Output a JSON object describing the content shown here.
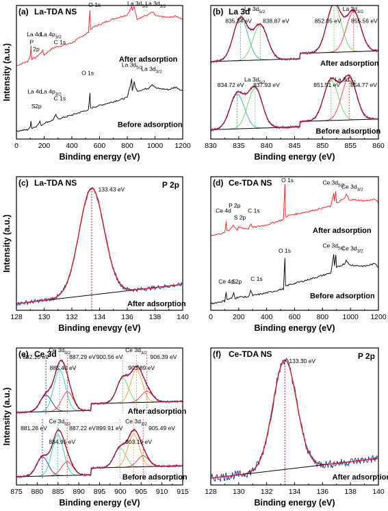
{
  "chart_data": [
    {
      "id": "a",
      "type": "line",
      "panel_label": "(a)",
      "sample": "La-TDA NS",
      "xlabel": "Binding energy (eV)",
      "ylabel": "Intensity (a.u.)",
      "xlim": [
        0,
        1200
      ],
      "xticks": [
        0,
        200,
        400,
        600,
        800,
        1000,
        1200
      ],
      "series": [
        {
          "name": "After adsorption",
          "color": "#ff2a2a",
          "x": [
            0,
            80,
            100,
            105,
            110,
            140,
            190,
            200,
            260,
            290,
            400,
            520,
            531,
            535,
            560,
            700,
            800,
            832,
            836,
            850,
            855,
            870,
            950,
            980,
            1010,
            1100,
            1150,
            1200
          ],
          "y": [
            0.55,
            0.58,
            0.62,
            0.7,
            0.6,
            0.61,
            0.66,
            0.63,
            0.68,
            0.69,
            0.72,
            0.8,
            0.97,
            0.82,
            0.84,
            0.9,
            0.93,
            0.99,
            0.96,
            0.99,
            0.97,
            0.9,
            0.93,
            0.95,
            0.92,
            0.91,
            0.92,
            0.9
          ]
        },
        {
          "name": "Before adsorption",
          "color": "#111111",
          "x": [
            0,
            80,
            100,
            105,
            110,
            150,
            170,
            180,
            200,
            260,
            285,
            300,
            400,
            520,
            531,
            535,
            560,
            700,
            800,
            832,
            836,
            850,
            855,
            870,
            950,
            980,
            1010,
            1100,
            1150,
            1200
          ],
          "y": [
            0.06,
            0.07,
            0.09,
            0.14,
            0.08,
            0.1,
            0.13,
            0.1,
            0.12,
            0.14,
            0.18,
            0.15,
            0.18,
            0.22,
            0.34,
            0.23,
            0.24,
            0.28,
            0.31,
            0.45,
            0.36,
            0.43,
            0.4,
            0.36,
            0.38,
            0.41,
            0.38,
            0.37,
            0.39,
            0.36
          ]
        }
      ],
      "annotations": [
        {
          "text": "O 1s",
          "x": 520,
          "y": 0.99
        },
        {
          "text": "La 3d",
          "sub": "5/2",
          "x": 800,
          "y": 1.0
        },
        {
          "text": "La 3d",
          "sub": "3/2",
          "x": 930,
          "y": 1.0
        },
        {
          "text": "La 4d",
          "x": 75,
          "y": 0.77
        },
        {
          "text": "P",
          "x": 96,
          "y": 0.71
        },
        {
          "text": "2p",
          "x": 120,
          "y": 0.66
        },
        {
          "text": "La 4p",
          "sub": "3/2",
          "x": 175,
          "y": 0.77
        },
        {
          "text": "C 1s",
          "x": 270,
          "y": 0.71
        },
        {
          "text": "O 1s",
          "x": 470,
          "y": 0.48
        },
        {
          "text": "La 3d",
          "sub": "5/2",
          "x": 760,
          "y": 0.54
        },
        {
          "text": "La 3d",
          "sub": "3/2",
          "x": 900,
          "y": 0.51
        },
        {
          "text": "La 4d",
          "x": 80,
          "y": 0.34
        },
        {
          "text": "S",
          "x": 108,
          "y": 0.23
        },
        {
          "text": "2p",
          "x": 134,
          "y": 0.23
        },
        {
          "text": "La 4p",
          "sub": "3/2",
          "x": 175,
          "y": 0.34
        },
        {
          "text": "C 1s",
          "x": 270,
          "y": 0.29
        }
      ],
      "state_labels": [
        {
          "text": "After adsorption",
          "x": 740,
          "y": 0.58
        },
        {
          "text": "Before adsorption",
          "x": 730,
          "y": 0.09
        }
      ]
    },
    {
      "id": "b",
      "type": "line",
      "panel_label": "(b)",
      "sample": "La 3d",
      "xlabel": "Binding energy (eV)",
      "ylabel": "",
      "xlim": [
        830,
        860
      ],
      "xticks": [
        830,
        835,
        840,
        845,
        850,
        855,
        860
      ],
      "peaks": {
        "after": [
          835.34,
          838.87,
          852.05,
          855.56
        ],
        "before": [
          834.72,
          837.93,
          851.51,
          854.77
        ]
      },
      "annotations": [
        {
          "text": "La 3d",
          "sub": "5/2",
          "x": 836.0,
          "y": 0.96
        },
        {
          "text": "La 3d",
          "sub": "3/2",
          "x": 853.6,
          "y": 0.96
        },
        {
          "text": "835.34 eV",
          "x": 832.6,
          "y": 0.87
        },
        {
          "text": "838.87 eV",
          "x": 839.3,
          "y": 0.87
        },
        {
          "text": "852.05 eV",
          "x": 848.6,
          "y": 0.87
        },
        {
          "text": "855.56 eV",
          "x": 855.1,
          "y": 0.87
        },
        {
          "text": "La 3d",
          "sub": "5/2",
          "x": 836.0,
          "y": 0.43
        },
        {
          "text": "La 3d",
          "sub": "3/2",
          "x": 852.2,
          "y": 0.43
        },
        {
          "text": "834.72 eV",
          "x": 831.2,
          "y": 0.39
        },
        {
          "text": "837.93 eV",
          "x": 837.6,
          "y": 0.39
        },
        {
          "text": "851.51 eV",
          "x": 848.4,
          "y": 0.39
        },
        {
          "text": "854.77 eV",
          "x": 855.0,
          "y": 0.39
        }
      ],
      "state_labels": [
        {
          "text": "After adsorption",
          "x": 849.6,
          "y": 0.55
        },
        {
          "text": "Before adsorption",
          "x": 848.8,
          "y": 0.04
        }
      ]
    },
    {
      "id": "c",
      "type": "line",
      "panel_label": "(c)",
      "sample": "La-TDA NS",
      "element": "P 2p",
      "xlabel": "Binding enevgy (eV)",
      "ylabel": "Intensity (a.u.)",
      "xlim": [
        128,
        140
      ],
      "xticks": [
        128,
        130,
        132,
        134,
        136,
        138,
        140
      ],
      "peaks": [
        133.43
      ],
      "annotations": [
        {
          "text": "133.43 eV",
          "x": 133.9,
          "y": 0.89
        }
      ],
      "state_labels": [
        {
          "text": "After adsorption",
          "x": 136.0,
          "y": 0.03
        }
      ]
    },
    {
      "id": "d",
      "type": "line",
      "panel_label": "(d)",
      "sample": "Ce-TDA NS",
      "xlabel": "Binding energy (eV)",
      "ylabel": "",
      "xlim": [
        0,
        1200
      ],
      "xticks": [
        0,
        200,
        400,
        600,
        800,
        1000,
        1200
      ],
      "series": [
        {
          "name": "After adsorption",
          "color": "#ff2a2a",
          "x": [
            0,
            100,
            110,
            115,
            130,
            150,
            160,
            190,
            200,
            270,
            285,
            300,
            400,
            520,
            531,
            535,
            560,
            700,
            860,
            880,
            885,
            895,
            900,
            960,
            970,
            990,
            1100,
            1180,
            1200
          ],
          "y": [
            0.56,
            0.58,
            0.66,
            0.6,
            0.6,
            0.62,
            0.64,
            0.6,
            0.62,
            0.61,
            0.65,
            0.62,
            0.64,
            0.68,
            0.95,
            0.7,
            0.71,
            0.74,
            0.78,
            0.88,
            0.82,
            0.89,
            0.8,
            0.84,
            0.87,
            0.83,
            0.82,
            0.83,
            0.8
          ]
        },
        {
          "name": "Before adsorption",
          "color": "#111111",
          "x": [
            0,
            100,
            110,
            115,
            150,
            165,
            175,
            200,
            270,
            285,
            300,
            400,
            520,
            531,
            535,
            560,
            700,
            860,
            880,
            885,
            895,
            900,
            960,
            970,
            990,
            1100,
            1180,
            1200
          ],
          "y": [
            0.05,
            0.07,
            0.14,
            0.08,
            0.09,
            0.13,
            0.09,
            0.1,
            0.1,
            0.15,
            0.11,
            0.13,
            0.16,
            0.39,
            0.18,
            0.19,
            0.23,
            0.28,
            0.42,
            0.33,
            0.41,
            0.32,
            0.35,
            0.38,
            0.34,
            0.33,
            0.35,
            0.32
          ]
        }
      ],
      "annotations": [
        {
          "text": "O 1s",
          "x": 505,
          "y": 0.96
        },
        {
          "text": "Ce 3d",
          "sub": "5/2",
          "x": 800,
          "y": 0.94
        },
        {
          "text": "Ce 3d",
          "sub": "3/2",
          "x": 935,
          "y": 0.91
        },
        {
          "text": "Ce 4d",
          "x": 35,
          "y": 0.73
        },
        {
          "text": "P 2p",
          "x": 128,
          "y": 0.77
        },
        {
          "text": "S 2p",
          "x": 165,
          "y": 0.68
        },
        {
          "text": "C 1s",
          "x": 265,
          "y": 0.73
        },
        {
          "text": "O 1s",
          "x": 485,
          "y": 0.43
        },
        {
          "text": "Ce 3d",
          "sub": "5/2",
          "x": 800,
          "y": 0.47
        },
        {
          "text": "Ce 3d",
          "sub": "3/2",
          "x": 935,
          "y": 0.45
        },
        {
          "text": "Ce 4d",
          "x": 55,
          "y": 0.2
        },
        {
          "text": "S",
          "x": 150,
          "y": 0.2
        },
        {
          "text": "2p",
          "x": 175,
          "y": 0.2
        },
        {
          "text": "C 1s",
          "x": 285,
          "y": 0.22
        }
      ],
      "state_labels": [
        {
          "text": "After adsorption",
          "x": 730,
          "y": 0.58
        },
        {
          "text": "Before adsorption",
          "x": 710,
          "y": 0.09
        }
      ]
    },
    {
      "id": "e",
      "type": "line",
      "panel_label": "(e)",
      "sample": "Ce 3d",
      "xlabel": "Binding energy (eV)",
      "ylabel": "Intensity (a.u.)",
      "xlim": [
        875,
        915
      ],
      "xticks": [
        875,
        880,
        885,
        890,
        895,
        900,
        905,
        910,
        915
      ],
      "peaks": {
        "after": [
          882.1,
          885.4,
          887.29,
          900.56,
          903.89,
          906.39
        ],
        "before": [
          881.26,
          884.95,
          887.22,
          899.91,
          903.19,
          905.49
        ]
      },
      "annotations": [
        {
          "text": "Ce 3d",
          "sub": "5/2",
          "x": 882.8,
          "y": 0.97
        },
        {
          "text": "Ce 3d",
          "sub": "3/2",
          "x": 901.2,
          "y": 0.97
        },
        {
          "text": "882.10 eV",
          "x": 876.5,
          "y": 0.92
        },
        {
          "text": "885.40 eV",
          "x": 883.0,
          "y": 0.84
        },
        {
          "text": "887.29 eV",
          "x": 887.7,
          "y": 0.92
        },
        {
          "text": "900.56 eV",
          "x": 894.2,
          "y": 0.92
        },
        {
          "text": "903.89 eV",
          "x": 901.9,
          "y": 0.84
        },
        {
          "text": "906.39 eV",
          "x": 907.2,
          "y": 0.92
        },
        {
          "text": "Ce 3d",
          "sub": "5/2",
          "x": 882.8,
          "y": 0.45
        },
        {
          "text": "Ce 3d",
          "sub": "3/2",
          "x": 901.2,
          "y": 0.45
        },
        {
          "text": "881.26 eV",
          "x": 876.0,
          "y": 0.4
        },
        {
          "text": "884.95 eV",
          "x": 882.8,
          "y": 0.3
        },
        {
          "text": "887.22 eV",
          "x": 887.7,
          "y": 0.4
        },
        {
          "text": "899.91 eV",
          "x": 894.2,
          "y": 0.4
        },
        {
          "text": "903.19 eV",
          "x": 901.2,
          "y": 0.3
        },
        {
          "text": "905.49 eV",
          "x": 906.8,
          "y": 0.4
        }
      ],
      "state_labels": [
        {
          "text": "After adsorption",
          "x": 901.8,
          "y": 0.52
        },
        {
          "text": "Before adsorption",
          "x": 900.5,
          "y": 0.04
        }
      ]
    },
    {
      "id": "f",
      "type": "line",
      "panel_label": "(f)",
      "sample": "Ce-TDA NS",
      "element": "P 2p",
      "xlabel": "Binding energy (eV)",
      "ylabel": "",
      "xlim": [
        128,
        140
      ],
      "xticks": [
        128,
        130,
        132,
        134,
        136,
        138,
        140
      ],
      "peaks": [
        133.3
      ],
      "annotations": [
        {
          "text": "133.30 eV",
          "x": 133.6,
          "y": 0.89
        }
      ],
      "state_labels": [
        {
          "text": "After adsorption",
          "x": 136.7,
          "y": 0.04
        }
      ]
    }
  ]
}
